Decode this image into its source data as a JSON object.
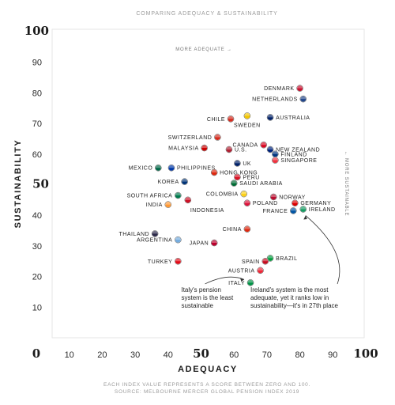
{
  "supertitle": "COMPARING ADEQUACY & SUSTAINABILITY",
  "footer": {
    "line1": "EACH INDEX VALUE REPRESENTS A SCORE BETWEEN ZERO AND 100.",
    "line2": "SOURCE: MELBOURNE MERCER GLOBAL PENSION INDEX 2019"
  },
  "chart_data": {
    "type": "scatter",
    "xlabel": "ADEQUACY",
    "ylabel": "SUSTAINABILITY",
    "xlim": [
      0,
      100
    ],
    "ylim": [
      0,
      100
    ],
    "x_ticks": [
      "0",
      "10",
      "20",
      "30",
      "40",
      "50",
      "60",
      "70",
      "80",
      "90",
      "100"
    ],
    "y_ticks": [
      "10",
      "20",
      "30",
      "40",
      "50",
      "60",
      "70",
      "80",
      "90",
      "100"
    ],
    "emphasized_ticks": [
      "0",
      "50",
      "100"
    ],
    "grid": false,
    "more_adequate_label": "MORE ADEQUATE →",
    "more_sustainable_label": "← MORE SUSTAINABLE",
    "points": [
      {
        "label": "DENMARK",
        "x": 80,
        "y": 81.5,
        "color": "#c8102e",
        "anchor": "left"
      },
      {
        "label": "NETHERLANDS",
        "x": 81,
        "y": 78,
        "color": "#21468b",
        "anchor": "left"
      },
      {
        "label": "AUSTRALIA",
        "x": 71,
        "y": 72,
        "color": "#012169",
        "anchor": "right"
      },
      {
        "label": "SWEDEN",
        "x": 64,
        "y": 72.5,
        "color": "#f2c500",
        "anchor": "below"
      },
      {
        "label": "CHILE",
        "x": 59,
        "y": 71.5,
        "color": "#d52b1e",
        "anchor": "left"
      },
      {
        "label": "SWITZERLAND",
        "x": 55,
        "y": 65.5,
        "color": "#d52b1e",
        "anchor": "left"
      },
      {
        "label": "MALAYSIA",
        "x": 51,
        "y": 62,
        "color": "#cc0000",
        "anchor": "left"
      },
      {
        "label": "U.S.",
        "x": 58.5,
        "y": 61.5,
        "color": "#b22234",
        "anchor": "right"
      },
      {
        "label": "CANADA",
        "x": 69,
        "y": 63,
        "color": "#d80621",
        "anchor": "left"
      },
      {
        "label": "NEW ZEALAND",
        "x": 71,
        "y": 61.5,
        "color": "#00247d",
        "anchor": "right"
      },
      {
        "label": "FINLAND",
        "x": 72.5,
        "y": 60,
        "color": "#003580",
        "anchor": "right"
      },
      {
        "label": "SINGAPORE",
        "x": 72.5,
        "y": 58,
        "color": "#ef3340",
        "anchor": "right"
      },
      {
        "label": "MEXICO",
        "x": 37,
        "y": 55.5,
        "color": "#006847",
        "anchor": "left"
      },
      {
        "label": "PHILIPPINES",
        "x": 41,
        "y": 55.5,
        "color": "#0038a8",
        "anchor": "right"
      },
      {
        "label": "UK",
        "x": 61,
        "y": 57,
        "color": "#012169",
        "anchor": "right"
      },
      {
        "label": "HONG KONG",
        "x": 54,
        "y": 54,
        "color": "#de2910",
        "anchor": "right"
      },
      {
        "label": "PERU",
        "x": 61,
        "y": 52.5,
        "color": "#d91023",
        "anchor": "right"
      },
      {
        "label": "KOREA",
        "x": 45,
        "y": 51,
        "color": "#003478",
        "anchor": "left"
      },
      {
        "label": "SAUDI ARABIA",
        "x": 60,
        "y": 50.5,
        "color": "#006c35",
        "anchor": "right"
      },
      {
        "label": "SOUTH AFRICA",
        "x": 43,
        "y": 46.5,
        "color": "#007a4d",
        "anchor": "left"
      },
      {
        "label": "COLOMBIA",
        "x": 63,
        "y": 47,
        "color": "#fcd116",
        "anchor": "left"
      },
      {
        "label": "NORWAY",
        "x": 72,
        "y": 46,
        "color": "#ba0c2f",
        "anchor": "right"
      },
      {
        "label": "INDIA",
        "x": 40,
        "y": 43.5,
        "color": "#ff9933",
        "anchor": "left"
      },
      {
        "label": "INDONESIA",
        "x": 46,
        "y": 45,
        "color": "#ce1126",
        "anchor": "below-right"
      },
      {
        "label": "POLAND",
        "x": 64,
        "y": 44,
        "color": "#dc143c",
        "anchor": "right"
      },
      {
        "label": "GERMANY",
        "x": 78.5,
        "y": 44,
        "color": "#dd0000",
        "anchor": "right"
      },
      {
        "label": "FRANCE",
        "x": 78,
        "y": 41.5,
        "color": "#0055a4",
        "anchor": "left"
      },
      {
        "label": "IRELAND",
        "x": 81,
        "y": 42,
        "color": "#169b62",
        "anchor": "right"
      },
      {
        "label": "CHINA",
        "x": 64,
        "y": 35.5,
        "color": "#de2910",
        "anchor": "left"
      },
      {
        "label": "THAILAND",
        "x": 36,
        "y": 34,
        "color": "#2d2a4a",
        "anchor": "left"
      },
      {
        "label": "ARGENTINA",
        "x": 43,
        "y": 32,
        "color": "#74acdf",
        "anchor": "left"
      },
      {
        "label": "JAPAN",
        "x": 54,
        "y": 31,
        "color": "#bc002d",
        "anchor": "left"
      },
      {
        "label": "TURKEY",
        "x": 43,
        "y": 25,
        "color": "#e30a17",
        "anchor": "left"
      },
      {
        "label": "BRAZIL",
        "x": 71,
        "y": 26,
        "color": "#009c3b",
        "anchor": "right"
      },
      {
        "label": "SPAIN",
        "x": 69.5,
        "y": 25,
        "color": "#c60b1e",
        "anchor": "left"
      },
      {
        "label": "AUSTRIA",
        "x": 68,
        "y": 22,
        "color": "#ed2939",
        "anchor": "left"
      },
      {
        "label": "ITALY",
        "x": 65,
        "y": 18,
        "color": "#009246",
        "anchor": "left"
      }
    ],
    "annotations": [
      {
        "lines": [
          "Italy's pension",
          "system is the least",
          "sustainable"
        ],
        "x": 44,
        "y": 15,
        "target": "ITALY"
      },
      {
        "lines": [
          "Ireland's system is the most",
          "adequate, yet it ranks low in",
          "sustainability—it's in 27th place"
        ],
        "x": 65,
        "y": 15,
        "target": "IRELAND"
      }
    ]
  }
}
